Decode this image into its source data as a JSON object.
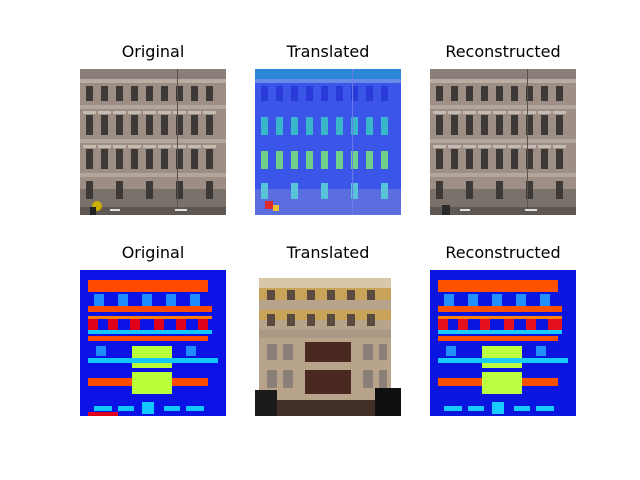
{
  "rows": [
    {
      "panels": [
        {
          "title": "Original"
        },
        {
          "title": "Translated"
        },
        {
          "title": "Reconstructed"
        }
      ]
    },
    {
      "panels": [
        {
          "title": "Original"
        },
        {
          "title": "Translated"
        },
        {
          "title": "Reconstructed"
        }
      ]
    }
  ],
  "colors": {
    "background": "#ffffff",
    "label_blue": "#0a12e6",
    "label_orange": "#ff4a00",
    "label_red": "#e0001a",
    "label_cyan": "#10c8ff",
    "label_yellow_green": "#b8ff3a",
    "label_light_blue": "#1e8cff",
    "facade_stone": "#9d8d80",
    "facade_yellow": "#c9a35a"
  }
}
